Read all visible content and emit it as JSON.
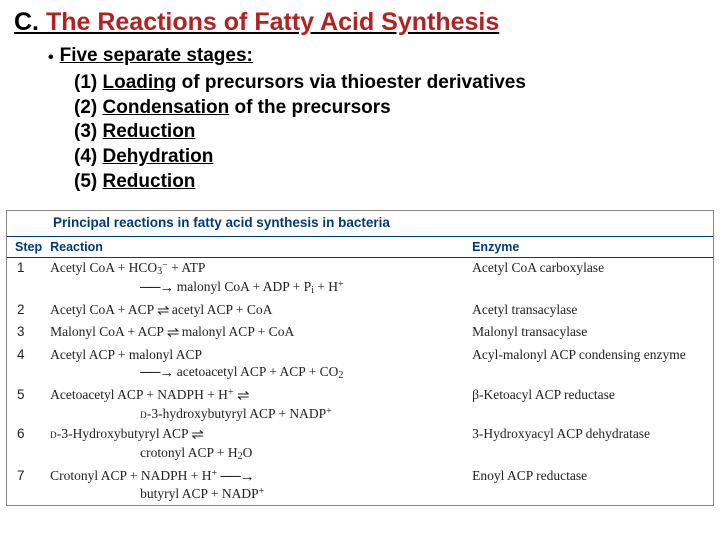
{
  "title": {
    "letter": "C.",
    "main": "The Reactions of Fatty Acid Synthesis"
  },
  "stages": {
    "heading": "Five separate stages:",
    "items": [
      {
        "n": "(1)",
        "u": "Loading",
        "rest": " of precursors via thioester derivatives"
      },
      {
        "n": "(2)",
        "u": "Condensation",
        "rest": " of the precursors"
      },
      {
        "n": "(3)",
        "u": "Reduction",
        "rest": ""
      },
      {
        "n": "(4)",
        "u": "Dehydration",
        "rest": ""
      },
      {
        "n": "(5)",
        "u": "Reduction",
        "rest": ""
      }
    ]
  },
  "table": {
    "title": "Principal reactions in fatty acid synthesis in bacteria",
    "headers": {
      "step": "Step",
      "reaction": "Reaction",
      "enzyme": "Enzyme"
    },
    "rows": [
      {
        "step": "1",
        "enzyme": "Acetyl CoA carboxylase"
      },
      {
        "step": "2",
        "enzyme": "Acetyl transacylase"
      },
      {
        "step": "3",
        "enzyme": "Malonyl transacylase"
      },
      {
        "step": "4",
        "enzyme": "Acyl-malonyl ACP condensing enzyme"
      },
      {
        "step": "5",
        "enzyme": "β-Ketoacyl ACP reductase"
      },
      {
        "step": "6",
        "enzyme": "3-Hydroxyacyl ACP dehydratase"
      },
      {
        "step": "7",
        "enzyme": "Enoyl ACP reductase"
      }
    ],
    "reactions": {
      "r1l1": "Acetyl CoA + HCO3− + ATP",
      "r1l2": "malonyl CoA + ADP + Pi + H+",
      "r2": "Acetyl CoA + ACP ⇌ acetyl ACP + CoA",
      "r3": "Malonyl CoA + ACP ⇌ malonyl ACP + CoA",
      "r4l1": "Acetyl ACP + malonyl ACP",
      "r4l2": "acetoacetyl ACP + ACP + CO2",
      "r5l1": "Acetoacetyl ACP + NADPH + H+ ⇌",
      "r5l2": "D-3-hydroxybutyryl ACP + NADP+",
      "r6l1": "D-3-Hydroxybutyryl ACP ⇌",
      "r6l2": "crotonyl ACP + H2O",
      "r7l1": "Crotonyl ACP + NADPH + H+ →",
      "r7l2": "butyryl ACP + NADP+"
    }
  }
}
